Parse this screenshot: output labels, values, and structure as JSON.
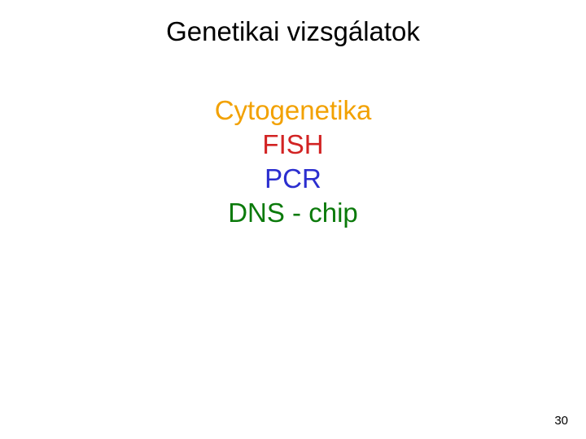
{
  "title": {
    "text": "Genetikai vizsgálatok",
    "fontsize": 33,
    "color": "#000000"
  },
  "items": [
    {
      "text": "Cytogenetika",
      "color": "#f2a100"
    },
    {
      "text": "FISH",
      "color": "#d22323"
    },
    {
      "text": "PCR",
      "color": "#2b2ecf"
    },
    {
      "text": "DNS - chip",
      "color": "#0b7a0b"
    }
  ],
  "list_fontsize": 33,
  "list_line_height": 42,
  "page_number": "30",
  "page_number_fontsize": 15,
  "background_color": "#ffffff"
}
